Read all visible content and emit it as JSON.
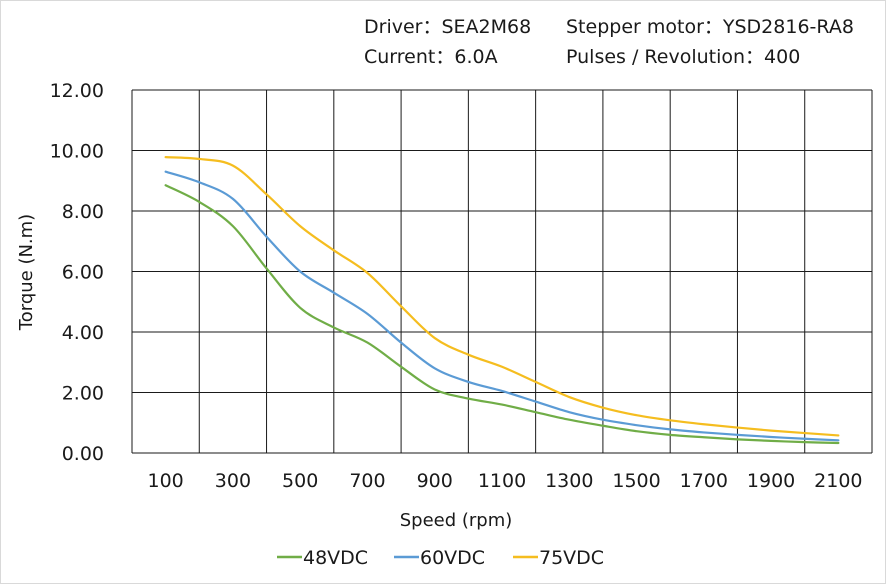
{
  "info": {
    "driver": "Driver：SEA2M68",
    "motor": "Stepper  motor：YSD2816-RA8",
    "current": "Current：6.0A",
    "pulses": "Pulses / Revolution：400"
  },
  "chart_data": {
    "type": "line",
    "title": "",
    "xlabel": "Speed  (rpm)",
    "ylabel": "Torque (N.m)",
    "xlim": [
      100,
      2100
    ],
    "ylim": [
      0,
      12
    ],
    "x_ticks": [
      "100",
      "300",
      "500",
      "700",
      "900",
      "1100",
      "1300",
      "1500",
      "1700",
      "1900",
      "2100"
    ],
    "y_ticks": [
      "0.00",
      "2.00",
      "4.00",
      "6.00",
      "8.00",
      "10.00",
      "12.00"
    ],
    "grid": true,
    "legend": "bottom",
    "x": [
      100,
      200,
      300,
      400,
      500,
      600,
      700,
      800,
      900,
      1000,
      1100,
      1200,
      1300,
      1400,
      1500,
      1600,
      1700,
      1800,
      1900,
      2000,
      2100
    ],
    "series": [
      {
        "name": "48VDC",
        "color": "#70ad47",
        "values": [
          8.85,
          8.3,
          7.5,
          6.1,
          4.8,
          4.15,
          3.65,
          2.85,
          2.1,
          1.8,
          1.6,
          1.35,
          1.1,
          0.9,
          0.72,
          0.6,
          0.52,
          0.45,
          0.4,
          0.36,
          0.33
        ]
      },
      {
        "name": "60VDC",
        "color": "#5b9bd5",
        "values": [
          9.3,
          8.95,
          8.4,
          7.15,
          6.0,
          5.3,
          4.6,
          3.65,
          2.8,
          2.35,
          2.05,
          1.7,
          1.35,
          1.1,
          0.92,
          0.78,
          0.68,
          0.6,
          0.53,
          0.47,
          0.42
        ]
      },
      {
        "name": "75VDC",
        "color": "#f5bd1f",
        "values": [
          9.78,
          9.72,
          9.5,
          8.55,
          7.5,
          6.7,
          5.95,
          4.85,
          3.8,
          3.25,
          2.85,
          2.35,
          1.85,
          1.5,
          1.25,
          1.08,
          0.95,
          0.84,
          0.74,
          0.66,
          0.58
        ]
      }
    ]
  }
}
